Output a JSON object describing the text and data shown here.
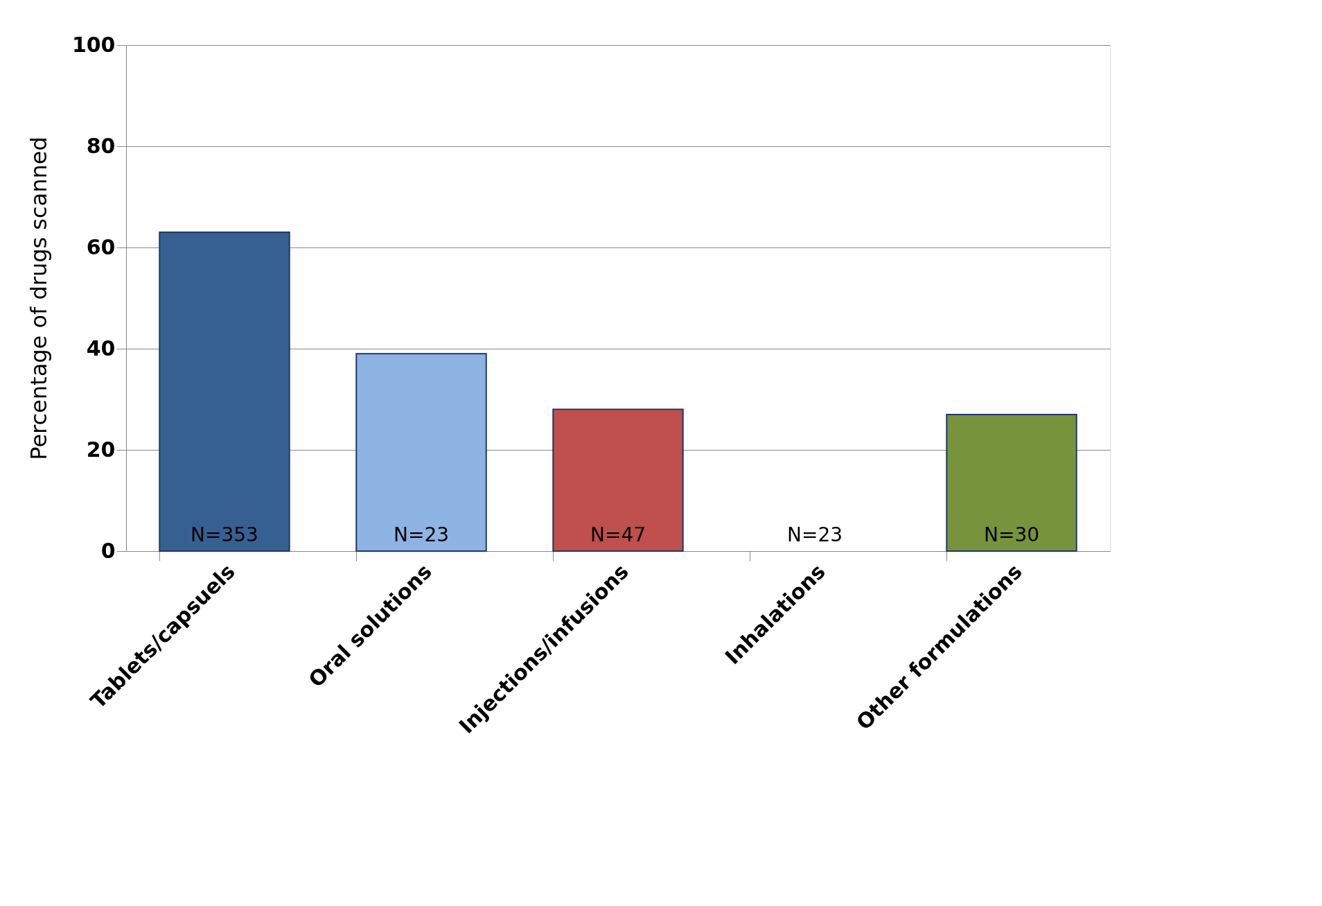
{
  "chart_data": {
    "type": "bar",
    "ylabel": "Percentage of drugs scanned",
    "categories": [
      "Tablets/capsuels",
      "Oral solutions",
      "Injections/infusions",
      "Inhalations",
      "Other formulations"
    ],
    "values": [
      63,
      39,
      28,
      0,
      27
    ],
    "colors": [
      "#376092",
      "#8eb4e3",
      "#c0504d",
      "#ffffff",
      "#77933c"
    ],
    "ylim": [
      0,
      100
    ],
    "yticks": [
      0,
      20,
      40,
      60,
      80,
      100
    ],
    "grid": "y",
    "annotations": [
      "N=353",
      "N=23",
      "N=47",
      "N=23",
      "N=30"
    ]
  }
}
